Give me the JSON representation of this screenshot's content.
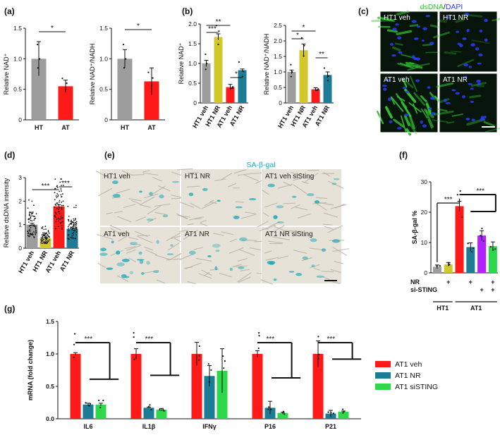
{
  "colors": {
    "gray": "#9d9d9d",
    "red": "#ff1a1a",
    "yellow": "#d2c82a",
    "teal": "#1c7b95",
    "green": "#2fd84a",
    "purple": "#b321ff",
    "dsdna": "#2fbf2f",
    "dapi": "#2a3cff",
    "sagal": "#19a8b8"
  },
  "panels": {
    "a": "(a)",
    "b": "(b)",
    "c": "(c)",
    "d": "(d)",
    "e": "(e)",
    "f": "(f)",
    "g": "(g)"
  },
  "panel_c": {
    "title_dsdna": "dsDNA",
    "title_slash": "/",
    "title_dapi": "DAPI",
    "labels": [
      "HT1 veh",
      "HT1 NR",
      "AT1 veh",
      "AT1 NR"
    ],
    "scalebar": true
  },
  "panel_e": {
    "title": "SA-β-gal",
    "labels": [
      "HT1 veh",
      "HT1 NR",
      "AT1  veh siSting",
      "AT1 veh",
      "AT1 NR",
      "AT1 NR siSting"
    ],
    "scalebar": true
  },
  "chart_data": [
    {
      "id": "a1",
      "type": "bar",
      "ylabel": "Relative NAD⁺",
      "categories": [
        "HT",
        "AT"
      ],
      "values": [
        1.0,
        0.55
      ],
      "errors": [
        0.28,
        0.1
      ],
      "colors": [
        "#9d9d9d",
        "#ff1a1a"
      ],
      "ylim": [
        0,
        1.5
      ],
      "yticks": [
        0,
        0.5,
        1.0,
        1.5
      ],
      "significance": [
        {
          "pair": [
            0,
            1
          ],
          "label": "*"
        }
      ]
    },
    {
      "id": "a2",
      "type": "bar",
      "ylabel": "Relative NAD⁺/NADH",
      "categories": [
        "HT",
        "AT"
      ],
      "values": [
        1.0,
        0.63
      ],
      "errors": [
        0.15,
        0.22
      ],
      "colors": [
        "#9d9d9d",
        "#ff1a1a"
      ],
      "ylim": [
        0,
        1.5
      ],
      "yticks": [
        0,
        0.5,
        1.0,
        1.5
      ],
      "significance": [
        {
          "pair": [
            0,
            1
          ],
          "label": "*"
        }
      ]
    },
    {
      "id": "b1",
      "type": "bar",
      "ylabel": "Relative NAD⁺",
      "categories": [
        "HT1 veh",
        "HT1 NR",
        "AT1 veh",
        "AT1 NR"
      ],
      "values": [
        1.0,
        1.67,
        0.4,
        0.83
      ],
      "errors": [
        0.08,
        0.08,
        0.07,
        0.03
      ],
      "colors": [
        "#9d9d9d",
        "#d2c82a",
        "#ff1a1a",
        "#1c7b95"
      ],
      "ylim": [
        0,
        2.0
      ],
      "yticks": [
        0,
        0.5,
        1.0,
        1.5,
        2.0
      ],
      "significance": [
        {
          "pair": [
            0,
            1
          ],
          "label": "***"
        },
        {
          "pair": [
            0,
            2
          ],
          "label": "**"
        },
        {
          "pair": [
            2,
            3
          ],
          "label": "*"
        }
      ]
    },
    {
      "id": "b2",
      "type": "bar",
      "ylabel": "Relative NAD⁺/NADH",
      "categories": [
        "HT1 veh",
        "HT1 NR",
        "AT1 veh",
        "AT1 NR"
      ],
      "values": [
        1.0,
        1.7,
        0.44,
        0.9
      ],
      "errors": [
        0.06,
        0.2,
        0.05,
        0.1
      ],
      "colors": [
        "#9d9d9d",
        "#d2c82a",
        "#ff1a1a",
        "#1c7b95"
      ],
      "ylim": [
        0,
        2.5
      ],
      "yticks": [
        0,
        0.5,
        1.0,
        1.5,
        2.0,
        2.5
      ],
      "significance": [
        {
          "pair": [
            0,
            1
          ],
          "label": "*"
        },
        {
          "pair": [
            0,
            2
          ],
          "label": "*"
        },
        {
          "pair": [
            2,
            3
          ],
          "label": "**"
        }
      ]
    },
    {
      "id": "d",
      "type": "bar",
      "ylabel": "Relative dsDNA intensity",
      "categories": [
        "HT1 veh",
        "HT1 NR",
        "AT1 veh",
        "AT1 NR"
      ],
      "values": [
        1.0,
        0.42,
        1.78,
        0.82
      ],
      "errors": [
        0.06,
        0.03,
        0.07,
        0.05
      ],
      "colors": [
        "#9d9d9d",
        "#d2c82a",
        "#ff1a1a",
        "#1c7b95"
      ],
      "ylim": [
        0,
        3
      ],
      "yticks": [
        0,
        1,
        2,
        3
      ],
      "significance": [
        {
          "pair": [
            0,
            2
          ],
          "label": "***"
        },
        {
          "pair": [
            2,
            3
          ],
          "label": "***"
        }
      ]
    },
    {
      "id": "f",
      "type": "bar",
      "ylabel": "SA-β-gal %",
      "categories": [
        "HT1 veh",
        "HT1 NR",
        "AT1 veh",
        "AT1 NR",
        "AT1 siSTING",
        "AT1 NR siSTING"
      ],
      "values": [
        2.0,
        2.8,
        22.0,
        8.5,
        12.3,
        8.8
      ],
      "errors": [
        0.6,
        0.6,
        1.6,
        1.4,
        1.6,
        1.4
      ],
      "colors": [
        "#9d9d9d",
        "#d2c82a",
        "#ff1a1a",
        "#1c7b95",
        "#b321ff",
        "#2fd84a"
      ],
      "ylim": [
        0,
        30
      ],
      "yticks": [
        0,
        10,
        20,
        30
      ],
      "rows": [
        {
          "label": "NR",
          "marks": [
            "",
            "+",
            "",
            "+",
            "",
            "+"
          ]
        },
        {
          "label": "si-STING",
          "marks": [
            "",
            "",
            "",
            "",
            "+",
            "+"
          ]
        }
      ],
      "groups": [
        {
          "label": "HT1",
          "from": 0,
          "to": 1
        },
        {
          "label": "AT1",
          "from": 2,
          "to": 5
        }
      ],
      "significance": [
        {
          "pair": [
            0,
            2
          ],
          "label": "***"
        },
        {
          "pair": [
            2,
            3
          ],
          "label": "***"
        }
      ]
    },
    {
      "id": "g",
      "type": "bar",
      "ylabel": "mRNA (fold change)",
      "categories": [
        "IL6",
        "IL1β",
        "IFNγ",
        "P16",
        "P21"
      ],
      "series": [
        {
          "name": "AT1 veh",
          "values": [
            1.0,
            1.0,
            1.0,
            1.0,
            1.0
          ],
          "errors": [
            0.02,
            0.08,
            0.18,
            0.05,
            0.2
          ],
          "color": "#ff1a1a"
        },
        {
          "name": "AT1 NR",
          "values": [
            0.22,
            0.17,
            0.66,
            0.17,
            0.08
          ],
          "errors": [
            0.02,
            0.01,
            0.16,
            0.1,
            0.05
          ],
          "color": "#1c7b95"
        },
        {
          "name": "AT1 siSTING",
          "values": [
            0.22,
            0.14,
            0.74,
            0.09,
            0.11
          ],
          "errors": [
            0.02,
            0.02,
            0.34,
            0.01,
            0.01
          ],
          "color": "#2fd84a"
        }
      ],
      "ylim": [
        0,
        1.5
      ],
      "yticks": [
        0,
        0.5,
        1.0,
        1.5
      ],
      "significance": [
        {
          "category": 0,
          "label": "***"
        },
        {
          "category": 1,
          "label": "***"
        },
        {
          "category": 3,
          "label": "***"
        },
        {
          "category": 4,
          "label": "***"
        }
      ],
      "legend_position": "right"
    }
  ]
}
